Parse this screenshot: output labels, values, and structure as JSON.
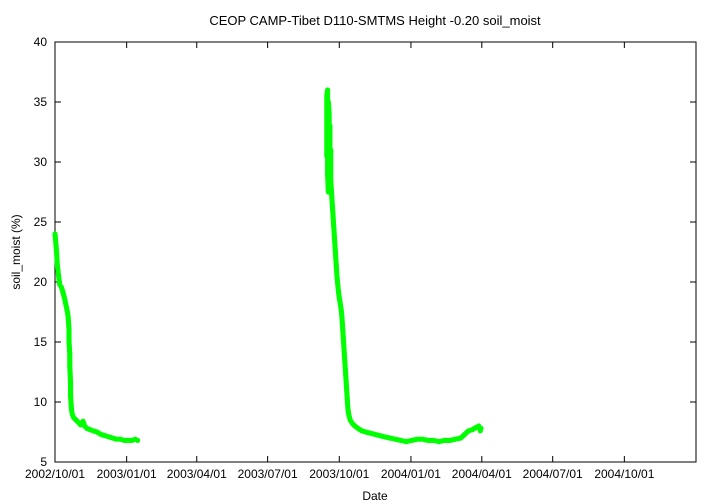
{
  "chart_data": {
    "type": "scatter",
    "title": "CEOP CAMP-Tibet D110-SMTMS Height -0.20 soil_moist",
    "xlabel": "Date",
    "ylabel": "soil_moist (%)",
    "ylim": [
      5,
      40
    ],
    "yticks": [
      5,
      10,
      15,
      20,
      25,
      30,
      35,
      40
    ],
    "xlim": [
      "2002-10-01",
      "2005-01-01"
    ],
    "xticks": [
      {
        "date": "2002-10-01",
        "label": "2002/10/01"
      },
      {
        "date": "2003-01-01",
        "label": "2003/01/01"
      },
      {
        "date": "2003-04-01",
        "label": "2003/04/01"
      },
      {
        "date": "2003-07-01",
        "label": "2003/07/01"
      },
      {
        "date": "2003-10-01",
        "label": "2003/10/01"
      },
      {
        "date": "2004-01-01",
        "label": "2004/01/01"
      },
      {
        "date": "2004-04-01",
        "label": "2004/04/01"
      },
      {
        "date": "2004-07-01",
        "label": "2004/07/01"
      },
      {
        "date": "2004-10-01",
        "label": "2004/10/01"
      }
    ],
    "grid": false,
    "series": [
      {
        "color": "#00ff00",
        "points": [
          [
            "2002-10-01",
            24.0
          ],
          [
            "2002-10-02",
            23.3
          ],
          [
            "2002-10-03",
            22.5
          ],
          [
            "2002-10-04",
            21.4
          ],
          [
            "2002-10-06",
            20.3
          ],
          [
            "2002-10-07",
            19.8
          ],
          [
            "2002-10-09",
            19.6
          ],
          [
            "2002-10-11",
            19.2
          ],
          [
            "2002-10-13",
            18.7
          ],
          [
            "2002-10-15",
            18.1
          ],
          [
            "2002-10-17",
            17.5
          ],
          [
            "2002-10-18",
            17.0
          ],
          [
            "2002-10-19",
            16.0
          ],
          [
            "2002-10-19",
            15.0
          ],
          [
            "2002-10-20",
            14.0
          ],
          [
            "2002-10-20",
            13.0
          ],
          [
            "2002-10-21",
            11.5
          ],
          [
            "2002-10-21",
            10.5
          ],
          [
            "2002-10-22",
            9.5
          ],
          [
            "2002-10-23",
            9.0
          ],
          [
            "2002-10-25",
            8.7
          ],
          [
            "2002-10-28",
            8.5
          ],
          [
            "2002-10-31",
            8.3
          ],
          [
            "2002-11-03",
            8.1
          ],
          [
            "2002-11-06",
            8.4
          ],
          [
            "2002-11-08",
            8.0
          ],
          [
            "2002-11-11",
            7.8
          ],
          [
            "2002-11-15",
            7.7
          ],
          [
            "2002-11-19",
            7.6
          ],
          [
            "2002-11-24",
            7.5
          ],
          [
            "2002-11-29",
            7.3
          ],
          [
            "2002-12-04",
            7.2
          ],
          [
            "2002-12-09",
            7.1
          ],
          [
            "2002-12-14",
            7.0
          ],
          [
            "2002-12-19",
            6.9
          ],
          [
            "2002-12-24",
            6.9
          ],
          [
            "2002-12-29",
            6.8
          ],
          [
            "2003-01-03",
            6.8
          ],
          [
            "2003-01-08",
            6.8
          ],
          [
            "2003-01-12",
            6.9
          ],
          [
            "2003-01-15",
            6.8
          ],
          [
            "2003-09-15",
            30.5
          ],
          [
            "2003-09-15",
            32.0
          ],
          [
            "2003-09-15",
            35.5
          ],
          [
            "2003-09-16",
            36.0
          ],
          [
            "2003-09-16",
            29.0
          ],
          [
            "2003-09-17",
            27.5
          ],
          [
            "2003-09-17",
            35.0
          ],
          [
            "2003-09-18",
            34.0
          ],
          [
            "2003-09-18",
            31.0
          ],
          [
            "2003-09-19",
            33.0
          ],
          [
            "2003-09-19",
            29.5
          ],
          [
            "2003-09-20",
            31.0
          ],
          [
            "2003-09-20",
            28.5
          ],
          [
            "2003-09-21",
            27.5
          ],
          [
            "2003-09-22",
            26.5
          ],
          [
            "2003-09-23",
            25.5
          ],
          [
            "2003-09-24",
            24.5
          ],
          [
            "2003-09-25",
            23.5
          ],
          [
            "2003-09-26",
            22.5
          ],
          [
            "2003-09-27",
            21.5
          ],
          [
            "2003-09-28",
            20.5
          ],
          [
            "2003-09-29",
            19.8
          ],
          [
            "2003-09-30",
            19.2
          ],
          [
            "2003-10-01",
            18.7
          ],
          [
            "2003-10-02",
            18.3
          ],
          [
            "2003-10-03",
            17.9
          ],
          [
            "2003-10-04",
            17.4
          ],
          [
            "2003-10-05",
            16.5
          ],
          [
            "2003-10-06",
            15.5
          ],
          [
            "2003-10-07",
            14.5
          ],
          [
            "2003-10-08",
            13.5
          ],
          [
            "2003-10-09",
            12.5
          ],
          [
            "2003-10-10",
            11.5
          ],
          [
            "2003-10-11",
            10.5
          ],
          [
            "2003-10-12",
            9.5
          ],
          [
            "2003-10-13",
            9.0
          ],
          [
            "2003-10-15",
            8.5
          ],
          [
            "2003-10-18",
            8.2
          ],
          [
            "2003-10-21",
            8.0
          ],
          [
            "2003-10-25",
            7.8
          ],
          [
            "2003-10-30",
            7.6
          ],
          [
            "2003-11-04",
            7.5
          ],
          [
            "2003-11-10",
            7.4
          ],
          [
            "2003-11-16",
            7.3
          ],
          [
            "2003-11-22",
            7.2
          ],
          [
            "2003-11-28",
            7.1
          ],
          [
            "2003-12-05",
            7.0
          ],
          [
            "2003-12-12",
            6.9
          ],
          [
            "2003-12-19",
            6.8
          ],
          [
            "2003-12-26",
            6.7
          ],
          [
            "2004-01-02",
            6.8
          ],
          [
            "2004-01-09",
            6.9
          ],
          [
            "2004-01-16",
            6.9
          ],
          [
            "2004-01-23",
            6.8
          ],
          [
            "2004-01-30",
            6.8
          ],
          [
            "2004-02-06",
            6.7
          ],
          [
            "2004-02-13",
            6.8
          ],
          [
            "2004-02-20",
            6.8
          ],
          [
            "2004-02-27",
            6.9
          ],
          [
            "2004-03-05",
            7.0
          ],
          [
            "2004-03-10",
            7.3
          ],
          [
            "2004-03-15",
            7.6
          ],
          [
            "2004-03-20",
            7.7
          ],
          [
            "2004-03-25",
            7.9
          ],
          [
            "2004-03-28",
            8.0
          ],
          [
            "2004-03-30",
            7.6
          ],
          [
            "2004-03-31",
            7.8
          ]
        ]
      }
    ]
  }
}
